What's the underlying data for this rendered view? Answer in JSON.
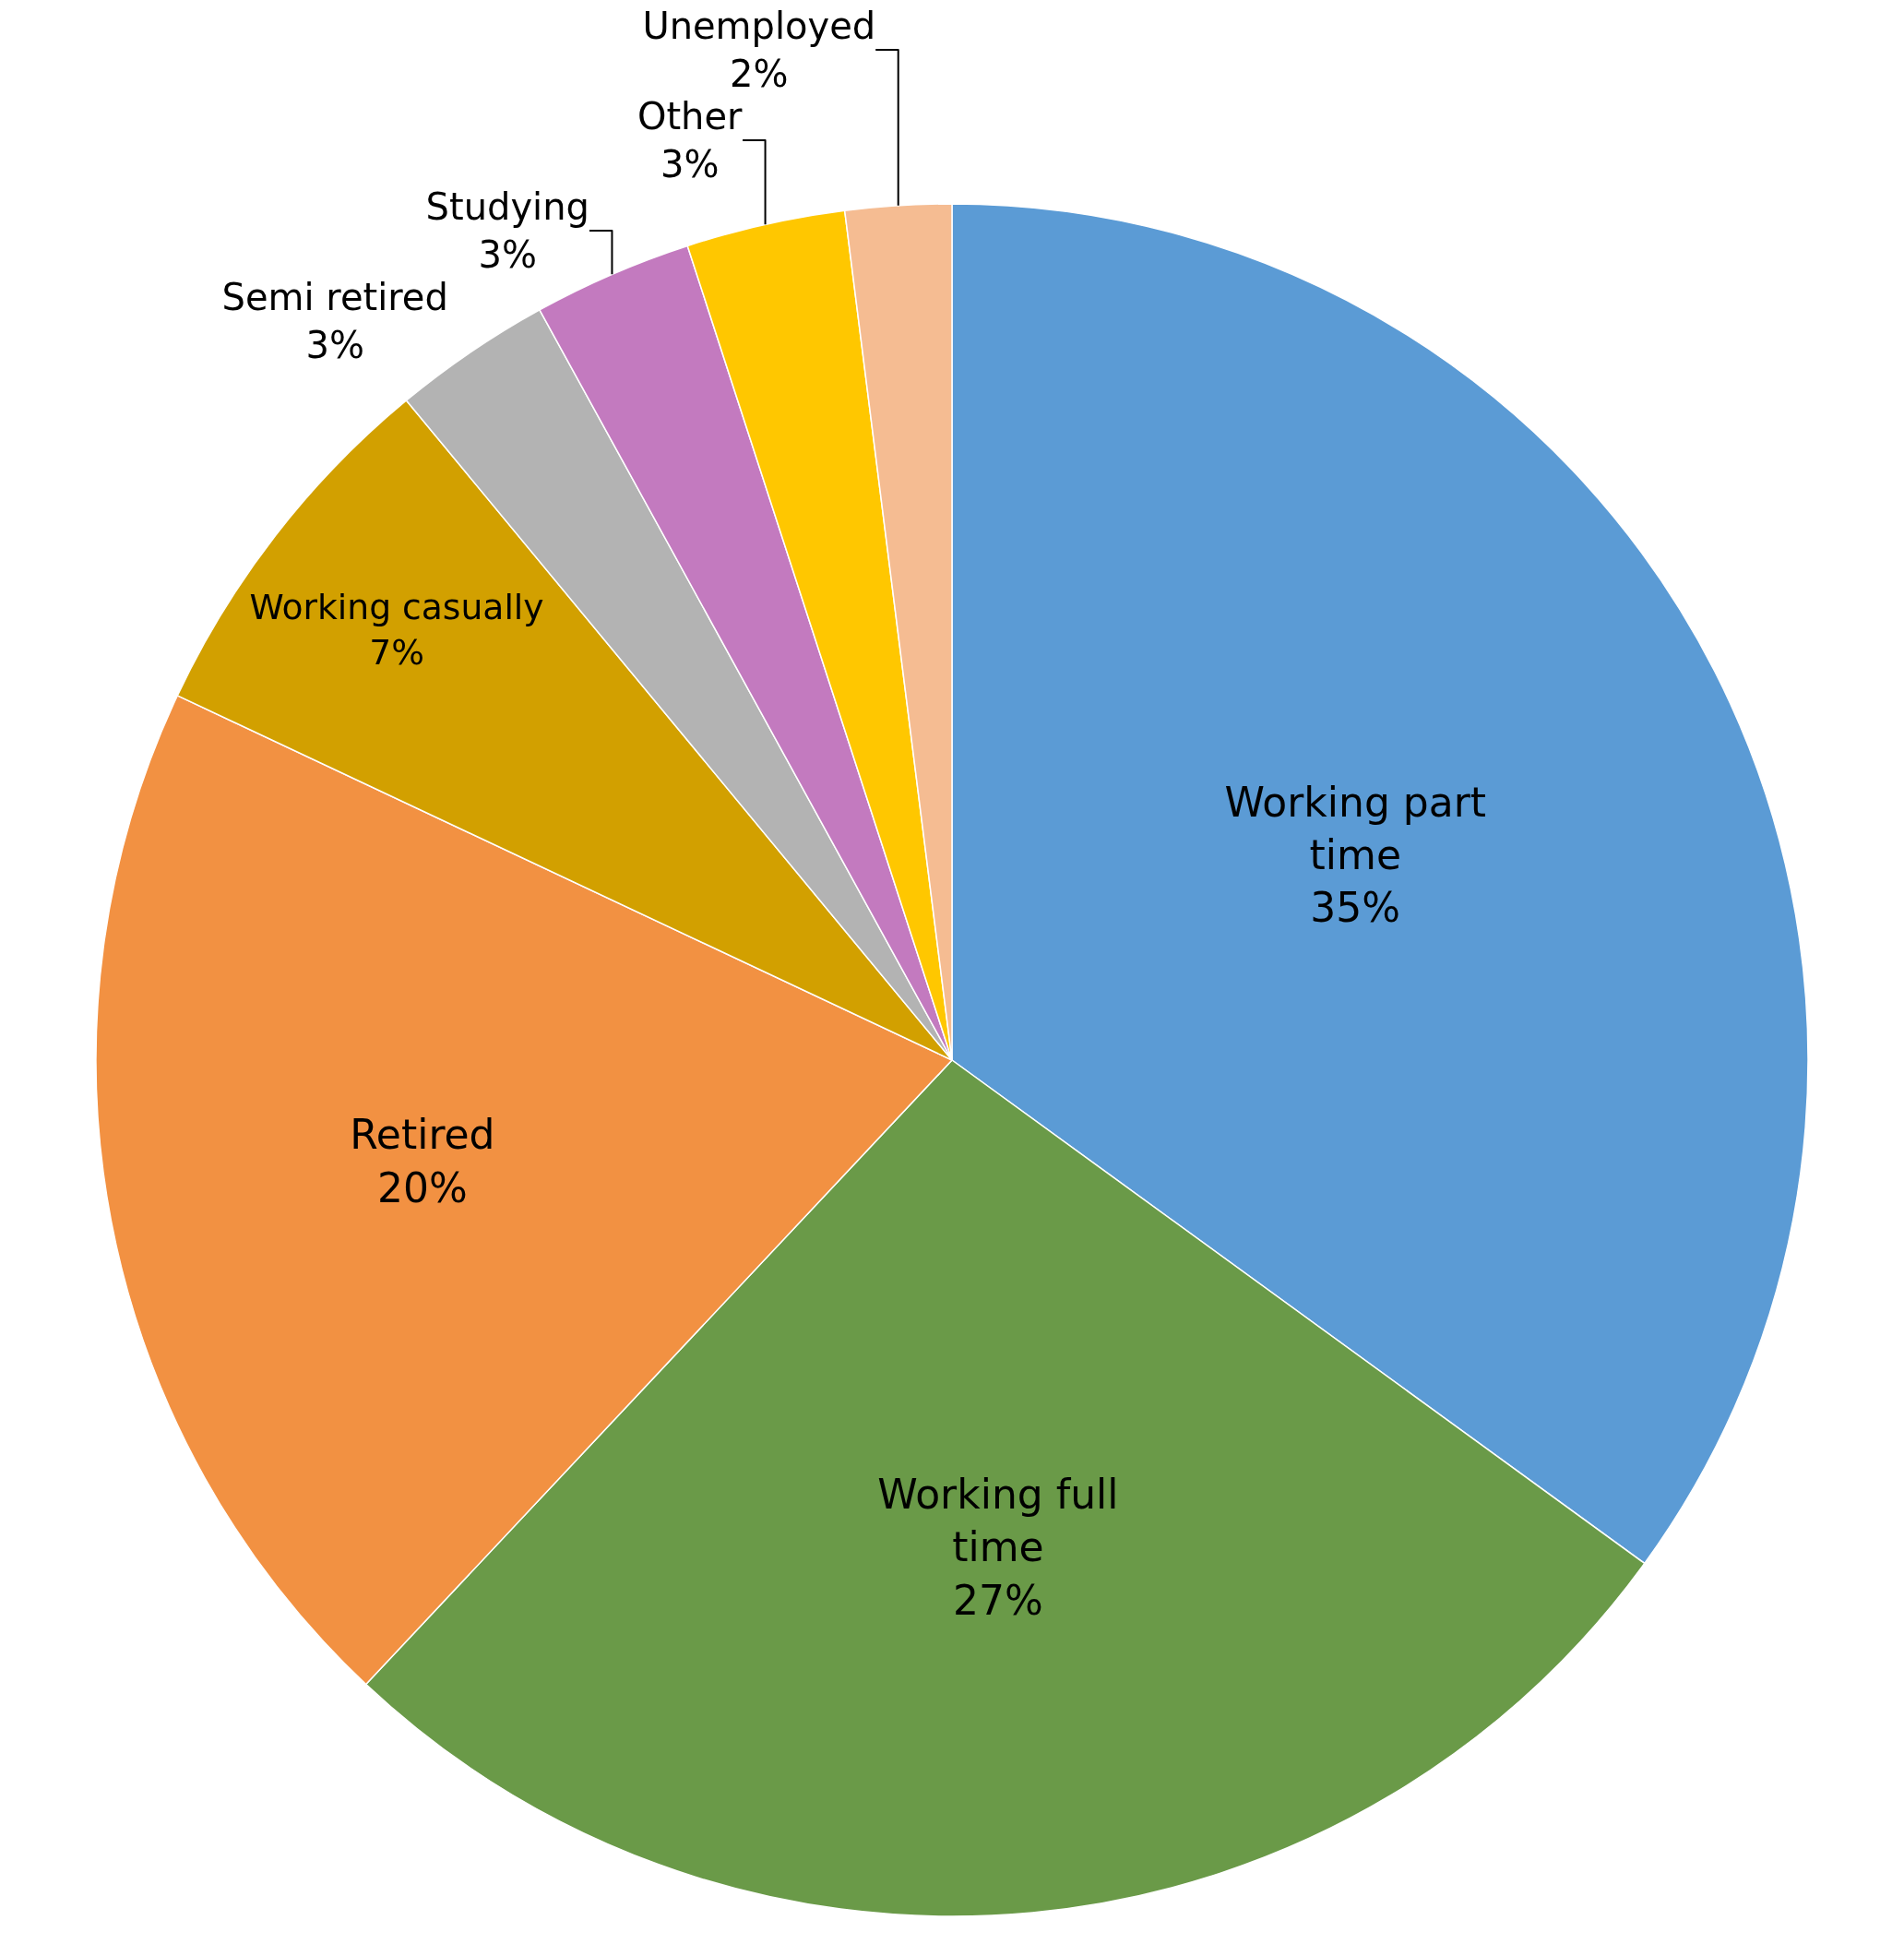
{
  "chart_data": {
    "type": "pie",
    "categories": [
      "Working part time",
      "Working full time",
      "Retired",
      "Working casually",
      "Semi retired",
      "Studying",
      "Other",
      "Unemployed"
    ],
    "values": [
      35,
      27,
      20,
      7,
      3,
      3,
      3,
      2
    ],
    "value_labels": [
      "35%",
      "27%",
      "20%",
      "7%",
      "3%",
      "3%",
      "3%",
      "2%"
    ],
    "colors": [
      "#5b9bd5",
      "#6a9a48",
      "#f29142",
      "#d2a000",
      "#b3b3b3",
      "#c37abf",
      "#ffc700",
      "#f5bc92"
    ],
    "legend": false
  }
}
